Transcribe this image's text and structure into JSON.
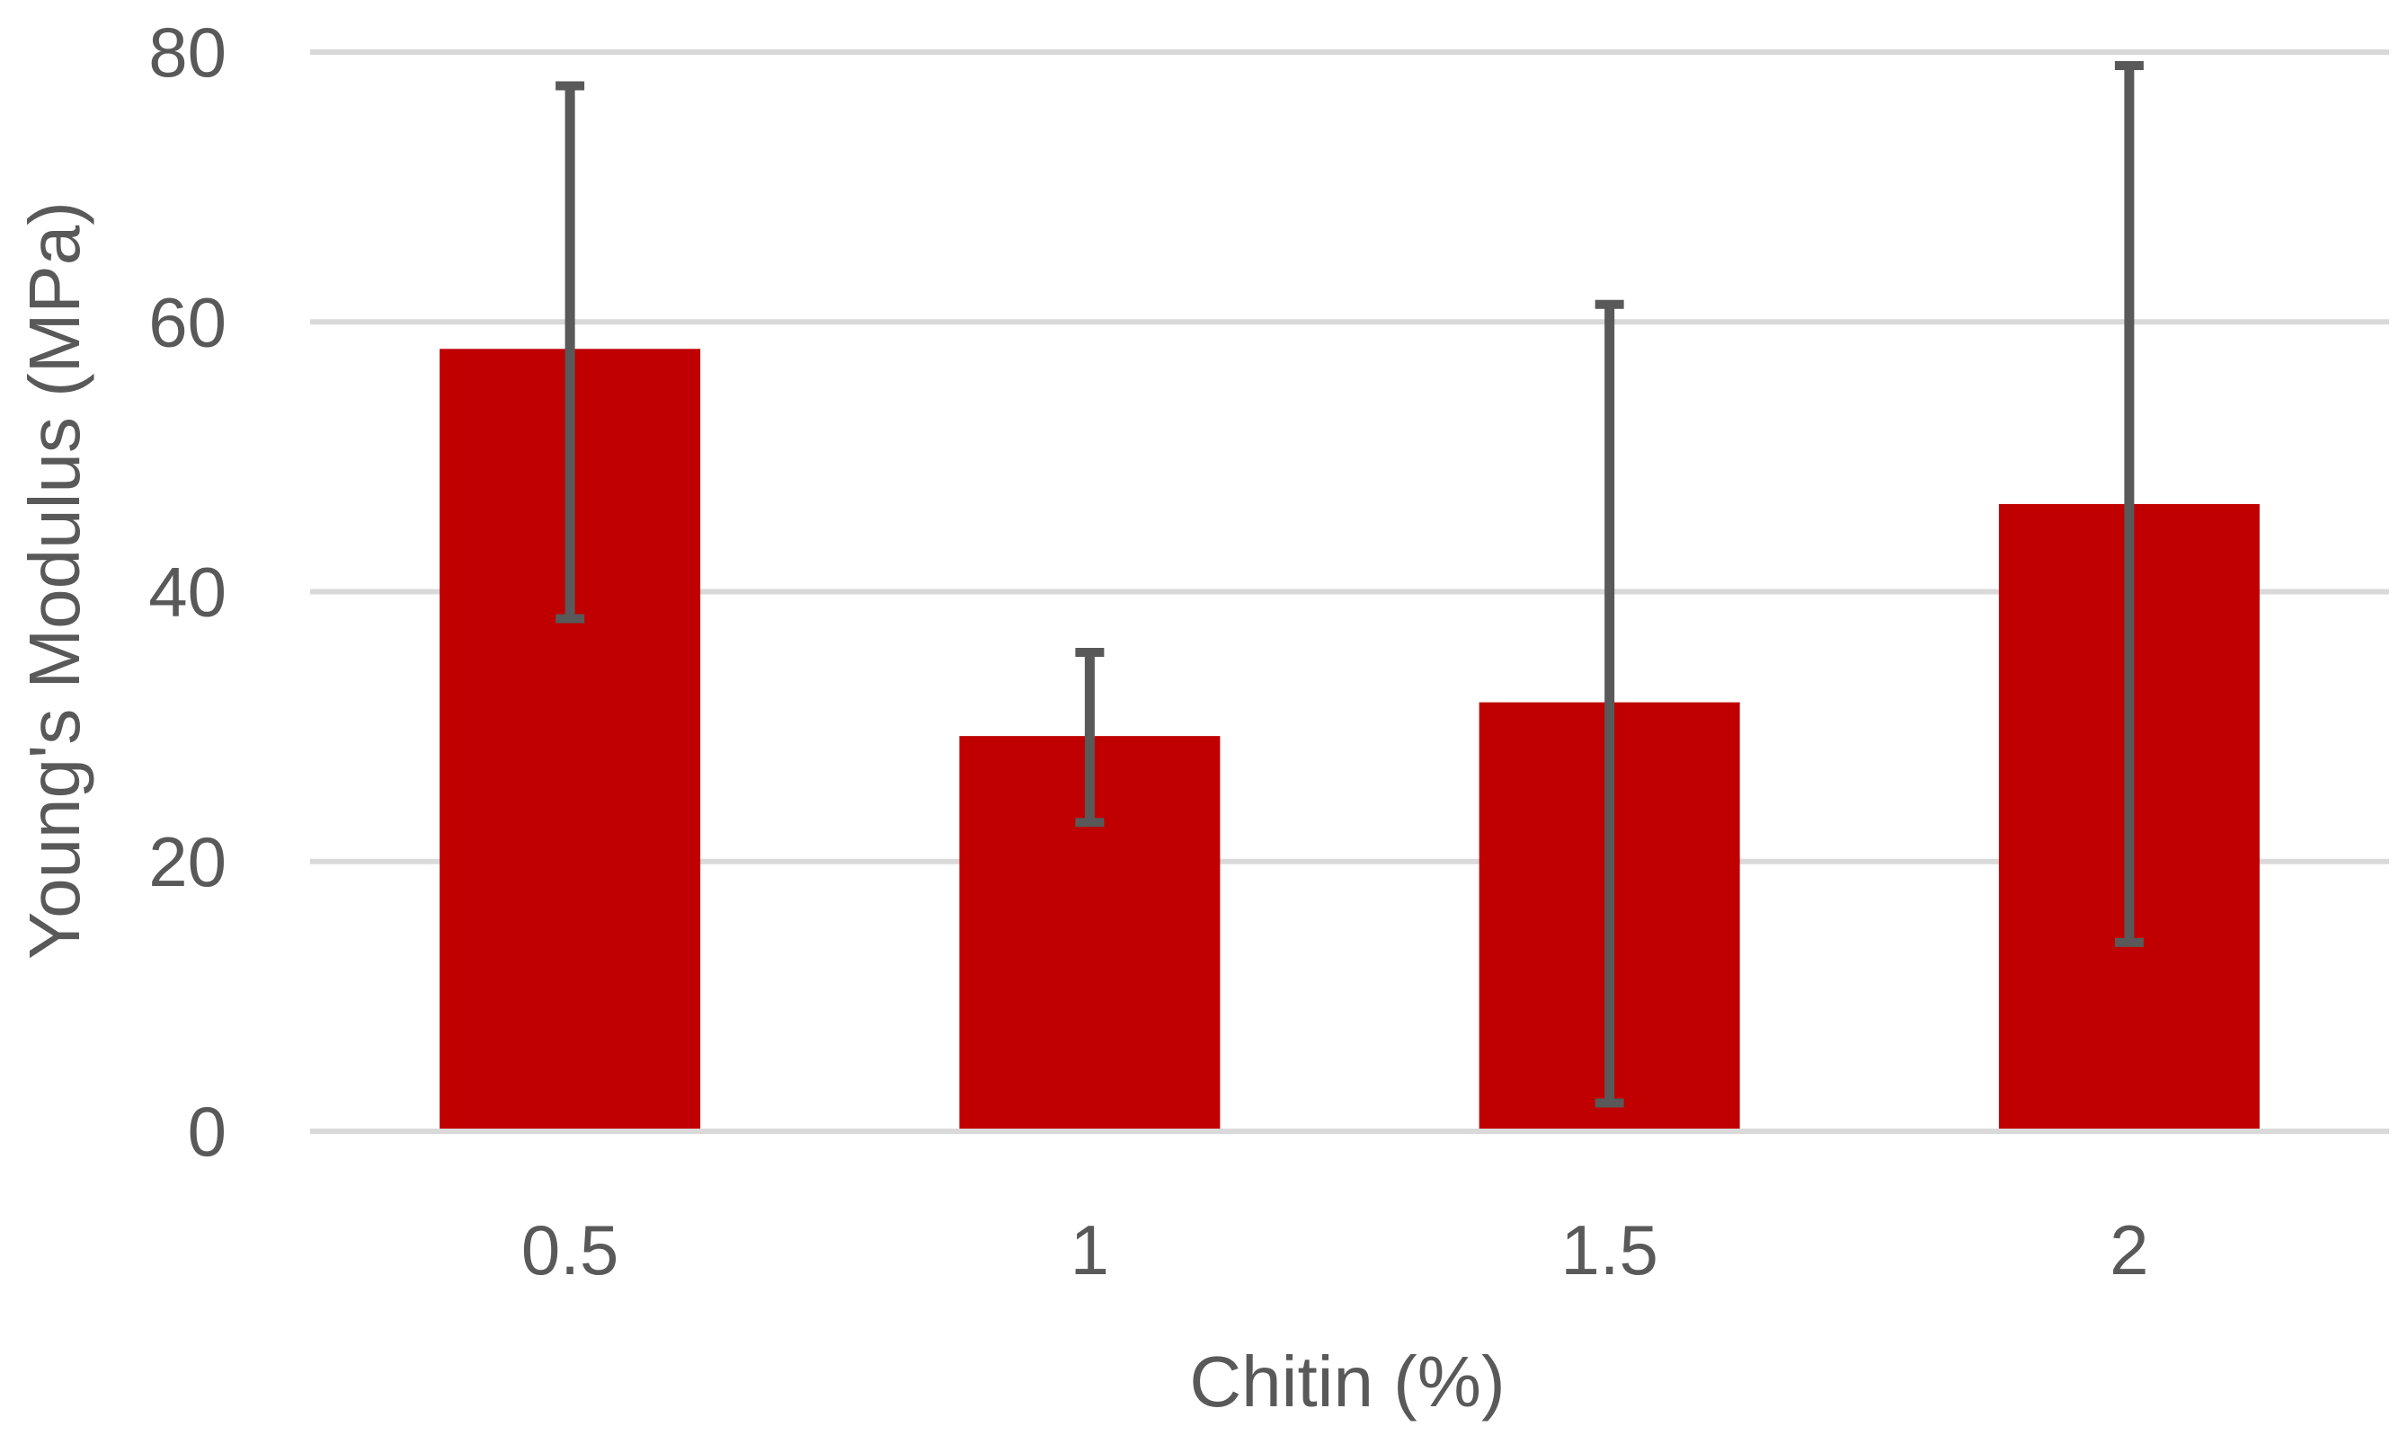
{
  "chart_data": {
    "type": "bar",
    "title": "",
    "xlabel": "Chitin (%)",
    "ylabel": "Young's Modulus (MPa)",
    "categories": [
      "0.5",
      "1",
      "1.5",
      "2"
    ],
    "series": [
      {
        "values": [
          58,
          29.3,
          31.8,
          46.5
        ],
        "error_low": [
          38,
          22.9,
          2.1,
          14
        ],
        "error_high": [
          77.5,
          35.5,
          61.3,
          79
        ]
      }
    ],
    "ylim": [
      0,
      80
    ],
    "yticks": [
      "0",
      "20",
      "40",
      "60",
      "80"
    ],
    "grid": true,
    "legend": "none",
    "colors": {
      "bar": "#C00000",
      "error_bar": "#595959",
      "grid": "#D9D9D9",
      "text": "#595959"
    }
  }
}
